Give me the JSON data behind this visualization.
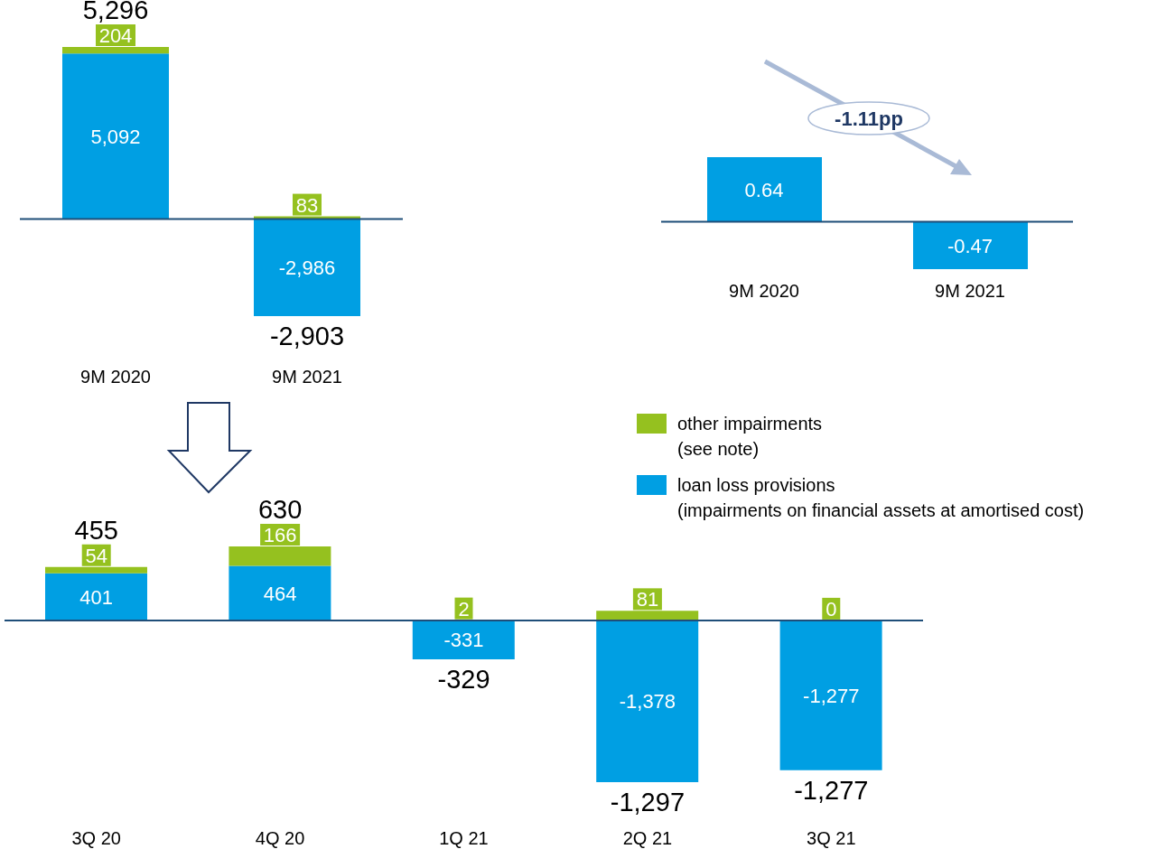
{
  "chart_data": [
    {
      "type": "bar",
      "stacked": true,
      "categories": [
        "9M 2020",
        "9M 2021"
      ],
      "totals": [
        "5,296",
        "-2,903"
      ],
      "ref_lines": [
        {
          "axis": "y",
          "value": 0,
          "color": "#1f4e79"
        }
      ],
      "series": [
        {
          "color": "#009fe3",
          "values": [
            5092,
            -2986
          ],
          "value_labels": [
            "5,092",
            "-2,986"
          ]
        },
        {
          "color": "#95c11f",
          "values": [
            204,
            83
          ],
          "value_labels": [
            "204",
            "83"
          ]
        }
      ]
    },
    {
      "type": "bar",
      "categories": [
        "9M 2020",
        "9M 2021"
      ],
      "data_labels": true,
      "annotations": [
        "-1.11pp"
      ],
      "ref_lines": [
        {
          "axis": "y",
          "value": 0,
          "color": "#1f4e79"
        }
      ],
      "series": [
        {
          "color": "#009fe3",
          "values": [
            0.64,
            -0.47
          ]
        }
      ]
    },
    {
      "type": "bar",
      "stacked": true,
      "categories": [
        "3Q 20",
        "4Q 20",
        "1Q 21",
        "2Q 21",
        "3Q 21"
      ],
      "legend": "top right",
      "totals": [
        "455",
        "630",
        "-329",
        "-1,297",
        "-1,277"
      ],
      "ref_lines": [
        {
          "axis": "y",
          "value": 0,
          "color": "#1f4e79"
        }
      ],
      "series": [
        {
          "name": "loan loss provisions\n(impairments on financial assets at amortised cost)",
          "color": "#009fe3",
          "values": [
            401,
            464,
            -331,
            -1378,
            -1277
          ],
          "value_labels": [
            "401",
            "464",
            "-331",
            "-1,378",
            "-1,277"
          ]
        },
        {
          "name": "other impairments\n(see note)",
          "color": "#95c11f",
          "values": [
            54,
            166,
            2,
            81,
            0
          ],
          "value_labels": [
            "54",
            "166",
            "2",
            "81",
            "0"
          ]
        }
      ]
    }
  ]
}
